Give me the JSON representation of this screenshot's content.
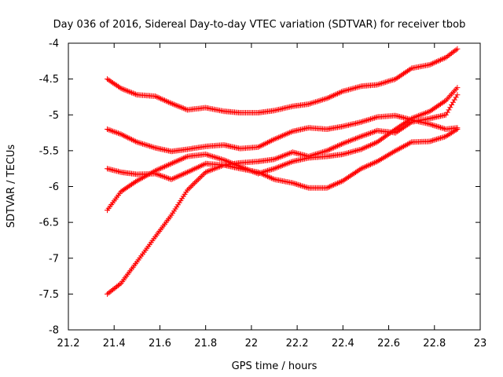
{
  "chart_data": {
    "type": "scatter",
    "title": "Day 036 of 2016, Sidereal Day-to-day VTEC variation (SDTVAR) for receiver tbob",
    "xlabel": "GPS time / hours",
    "ylabel": "SDTVAR / TECUs",
    "xlim": [
      21.2,
      23.0
    ],
    "ylim": [
      -8.0,
      -4.0
    ],
    "xticks": [
      21.2,
      21.4,
      21.6,
      21.8,
      22.0,
      22.2,
      22.4,
      22.6,
      22.8,
      23.0
    ],
    "xtick_labels": [
      "21.2",
      "21.4",
      "21.6",
      "21.8",
      "22",
      "22.2",
      "22.4",
      "22.6",
      "22.8",
      "23"
    ],
    "yticks": [
      -8.0,
      -7.5,
      -7.0,
      -6.5,
      -6.0,
      -5.5,
      -5.0,
      -4.5,
      -4.0
    ],
    "ytick_labels": [
      "-8",
      "-7.5",
      "-7",
      "-6.5",
      "-6",
      "-5.5",
      "-5",
      "-4.5",
      "-4"
    ],
    "marker": "+",
    "series_color": "#ff0000",
    "grid": false,
    "series": [
      {
        "name": "series 1",
        "x": [
          21.37,
          21.43,
          21.5,
          21.58,
          21.65,
          21.72,
          21.8,
          21.88,
          21.95,
          22.03,
          22.1,
          22.18,
          22.25,
          22.33,
          22.4,
          22.48,
          22.55,
          22.63,
          22.7,
          22.78,
          22.85,
          22.9
        ],
        "y": [
          -4.5,
          -4.63,
          -4.72,
          -4.74,
          -4.84,
          -4.93,
          -4.9,
          -4.95,
          -4.97,
          -4.97,
          -4.94,
          -4.88,
          -4.85,
          -4.77,
          -4.67,
          -4.6,
          -4.58,
          -4.5,
          -4.35,
          -4.3,
          -4.2,
          -4.08
        ]
      },
      {
        "name": "series 2",
        "x": [
          21.37,
          21.43,
          21.5,
          21.58,
          21.65,
          21.72,
          21.8,
          21.88,
          21.95,
          22.03,
          22.1,
          22.18,
          22.25,
          22.33,
          22.4,
          22.48,
          22.55,
          22.63,
          22.7,
          22.78,
          22.85,
          22.9
        ],
        "y": [
          -5.2,
          -5.27,
          -5.38,
          -5.46,
          -5.51,
          -5.48,
          -5.44,
          -5.42,
          -5.47,
          -5.45,
          -5.34,
          -5.23,
          -5.18,
          -5.2,
          -5.16,
          -5.1,
          -5.03,
          -5.01,
          -5.07,
          -5.13,
          -5.2,
          -5.18
        ]
      },
      {
        "name": "series 3",
        "x": [
          21.37,
          21.43,
          21.5,
          21.58,
          21.65,
          21.72,
          21.8,
          21.88,
          21.95,
          22.03,
          22.1,
          22.18,
          22.25,
          22.33,
          22.4,
          22.48,
          22.55,
          22.63,
          22.7,
          22.78,
          22.85,
          22.9
        ],
        "y": [
          -5.75,
          -5.8,
          -5.83,
          -5.82,
          -5.9,
          -5.8,
          -5.68,
          -5.7,
          -5.75,
          -5.8,
          -5.9,
          -5.95,
          -6.02,
          -6.02,
          -5.92,
          -5.75,
          -5.65,
          -5.5,
          -5.38,
          -5.37,
          -5.3,
          -5.2
        ]
      },
      {
        "name": "series 4",
        "x": [
          21.37,
          21.43,
          21.5,
          21.58,
          21.65,
          21.72,
          21.8,
          21.88,
          21.95,
          22.03,
          22.1,
          22.18,
          22.25,
          22.33,
          22.4,
          22.48,
          22.55,
          22.63,
          22.7,
          22.78,
          22.85,
          22.9
        ],
        "y": [
          -6.33,
          -6.07,
          -5.92,
          -5.78,
          -5.68,
          -5.58,
          -5.55,
          -5.63,
          -5.72,
          -5.82,
          -5.75,
          -5.65,
          -5.6,
          -5.58,
          -5.55,
          -5.48,
          -5.38,
          -5.2,
          -5.05,
          -4.95,
          -4.8,
          -4.62
        ]
      },
      {
        "name": "series 5",
        "x": [
          21.37,
          21.43,
          21.5,
          21.58,
          21.65,
          21.72,
          21.8,
          21.88,
          21.95,
          22.03,
          22.1,
          22.18,
          22.25,
          22.33,
          22.4,
          22.48,
          22.55,
          22.63,
          22.7,
          22.78,
          22.85,
          22.9
        ],
        "y": [
          -7.5,
          -7.35,
          -7.05,
          -6.7,
          -6.4,
          -6.05,
          -5.8,
          -5.7,
          -5.67,
          -5.65,
          -5.62,
          -5.52,
          -5.58,
          -5.5,
          -5.4,
          -5.3,
          -5.22,
          -5.25,
          -5.1,
          -5.05,
          -5.0,
          -4.72
        ]
      }
    ]
  }
}
